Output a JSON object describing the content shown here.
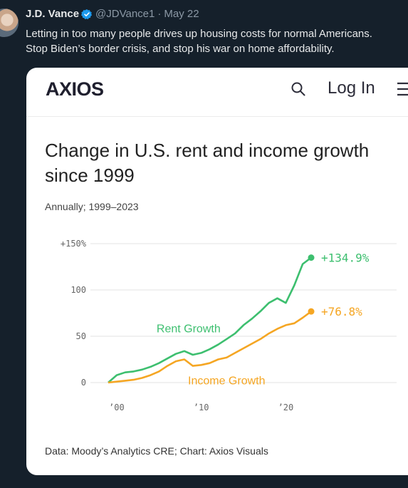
{
  "tweet": {
    "author_name": "J.D. Vance",
    "handle": "@JDVance1",
    "separator": "·",
    "date": "May 22",
    "text_lines": [
      "Letting in too many people drives up housing costs for normal Americans.",
      "Stop Biden’s border crisis, and stop his war on home affordability."
    ],
    "verified_color": "#1d9bf0"
  },
  "article_header": {
    "logo": "AXIOS",
    "login_label": "Log In",
    "icons": [
      "search-icon",
      "menu-icon"
    ]
  },
  "chart": {
    "title": "Change in U.S. rent and income growth since 1999",
    "subtitle": "Annually; 1999–2023",
    "source": "Data: Moody’s Analytics CRE; Chart: Axios Visuals"
  },
  "chart_data": {
    "type": "line",
    "x": [
      1999,
      2000,
      2001,
      2002,
      2003,
      2004,
      2005,
      2006,
      2007,
      2008,
      2009,
      2010,
      2011,
      2012,
      2013,
      2014,
      2015,
      2016,
      2017,
      2018,
      2019,
      2020,
      2021,
      2022,
      2023
    ],
    "series": [
      {
        "name": "Rent Growth",
        "color": "#3dbf6f",
        "end_label": "+134.9%",
        "values": [
          0,
          8,
          11,
          12,
          14,
          17,
          21,
          26,
          31,
          34,
          30,
          32,
          36,
          41,
          47,
          53,
          62,
          69,
          77,
          86,
          91,
          86,
          105,
          128,
          134.9
        ]
      },
      {
        "name": "Income Growth",
        "color": "#f5a623",
        "end_label": "+76.8%",
        "values": [
          0,
          1,
          2,
          3,
          5,
          8,
          12,
          18,
          23,
          25,
          18,
          19,
          21,
          25,
          27,
          32,
          37,
          42,
          47,
          53,
          58,
          62,
          64,
          70,
          76.8
        ]
      }
    ],
    "yticks": [
      0,
      50,
      100,
      150
    ],
    "ytick_labels": [
      "0",
      "50",
      "100",
      "+150%"
    ],
    "xticks": [
      2000,
      2010,
      2020
    ],
    "xtick_labels": [
      "’00",
      "’10",
      "’20"
    ],
    "ylim": [
      0,
      150
    ],
    "grid": true
  }
}
